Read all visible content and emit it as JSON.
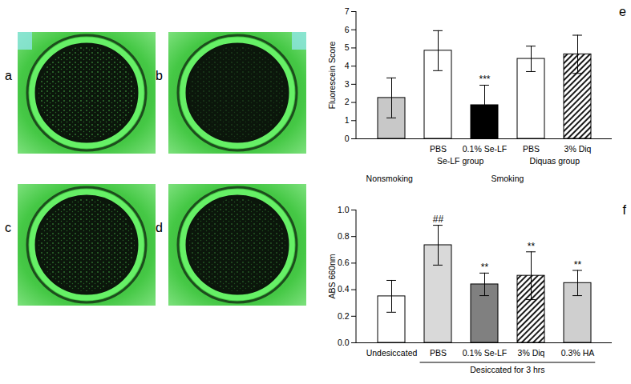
{
  "photos": {
    "labels": [
      "a",
      "b",
      "c",
      "d"
    ]
  },
  "chart_data": [
    {
      "type": "bar",
      "panel_label": "e",
      "y_label": "Fluorescein Score",
      "categories": [
        null,
        "PBS",
        "0.1% Se-LF",
        "PBS",
        "3% Diq"
      ],
      "values": [
        2.25,
        4.85,
        1.85,
        4.4,
        4.65
      ],
      "errors": [
        1.1,
        1.1,
        1.1,
        0.7,
        1.05
      ],
      "significance": [
        null,
        null,
        "***",
        null,
        null
      ],
      "colors": [
        "#c8c8c8",
        "#ffffff",
        "#000000",
        "#ffffff",
        "url(#hatch)"
      ],
      "annotations": [
        "Se-LF group",
        "Diquas group",
        "Nonsmoking",
        "Smoking"
      ],
      "ylim": [
        0,
        7
      ],
      "yticks": [
        0,
        1,
        2,
        3,
        4,
        5,
        6,
        7
      ]
    },
    {
      "type": "bar",
      "panel_label": "f",
      "y_label": "ABS 660nm",
      "categories": [
        "Undesiccated",
        "PBS",
        "0.1% Se-LF",
        "3% Diq",
        "0.3% HA"
      ],
      "values": [
        0.35,
        0.735,
        0.44,
        0.505,
        0.45
      ],
      "errors": [
        0.12,
        0.15,
        0.085,
        0.18,
        0.095
      ],
      "significance": [
        null,
        "##",
        "**",
        "**",
        "**"
      ],
      "colors": [
        "#ffffff",
        "#d9d9d9",
        "#808080",
        "url(#hatch)",
        "#cfcfcf"
      ],
      "annotations": [
        "Desiccated for 3 hrs"
      ],
      "ylim": [
        0,
        1
      ],
      "yticks": [
        {
          "value": 0,
          "label": "0.0"
        },
        0.2,
        0.4,
        0.6,
        0.8,
        {
          "value": 1,
          "label": "1.0"
        }
      ]
    }
  ]
}
